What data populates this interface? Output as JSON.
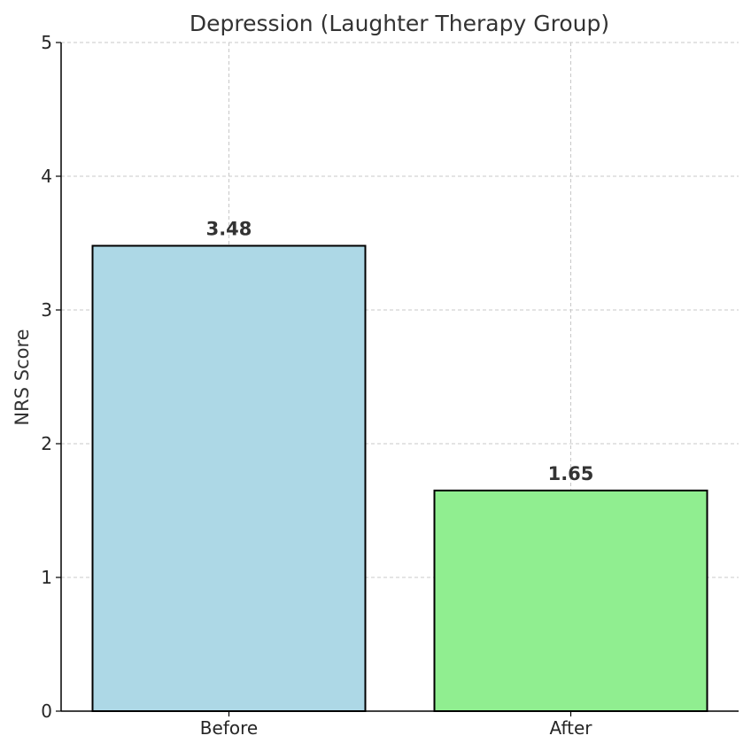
{
  "chart_data": {
    "type": "bar",
    "title": "Depression (Laughter Therapy Group)",
    "xlabel": "",
    "ylabel": "NRS Score",
    "categories": [
      "Before",
      "After"
    ],
    "values": [
      3.48,
      1.65
    ],
    "value_labels": [
      "3.48",
      "1.65"
    ],
    "bar_colors": [
      "#add8e6",
      "#90ee90"
    ],
    "ylim": [
      0,
      5
    ],
    "yticks": [
      0,
      1,
      2,
      3,
      4,
      5
    ],
    "ytick_labels": [
      "0",
      "1",
      "2",
      "3",
      "4",
      "5"
    ],
    "grid": true,
    "legend": false
  }
}
